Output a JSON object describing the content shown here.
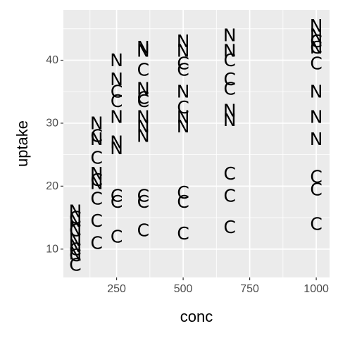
{
  "chart_data": {
    "type": "scatter",
    "title": "",
    "xlabel": "conc",
    "ylabel": "uptake",
    "xlim": [
      50,
      1050
    ],
    "ylim": [
      5.5,
      48
    ],
    "x_ticks": [
      250,
      500,
      750,
      1000
    ],
    "x_tick_labels": [
      "250",
      "500",
      "750",
      "1000"
    ],
    "y_ticks": [
      10,
      20,
      30,
      40
    ],
    "y_tick_labels": [
      "10",
      "20",
      "30",
      "40"
    ],
    "grid": true,
    "legend": "none",
    "panel_background": "#ebebeb",
    "gridline_color": "#ffffff",
    "label_series": [
      {
        "name": "N",
        "points": [
          [
            95,
            16.0
          ],
          [
            95,
            14.5
          ],
          [
            95,
            13.2
          ],
          [
            95,
            11.5
          ],
          [
            95,
            10.5
          ],
          [
            95,
            9.3
          ],
          [
            175,
            30.0
          ],
          [
            175,
            27.5
          ],
          [
            175,
            22.0
          ],
          [
            175,
            20.5
          ],
          [
            250,
            40.0
          ],
          [
            250,
            37.0
          ],
          [
            250,
            31.0
          ],
          [
            250,
            27.0
          ],
          [
            250,
            26.0
          ],
          [
            350,
            42.0
          ],
          [
            350,
            41.5
          ],
          [
            350,
            35.5
          ],
          [
            350,
            31.0
          ],
          [
            350,
            29.5
          ],
          [
            350,
            28.0
          ],
          [
            500,
            43.0
          ],
          [
            500,
            41.5
          ],
          [
            500,
            35.0
          ],
          [
            500,
            31.0
          ],
          [
            500,
            29.5
          ],
          [
            675,
            44.0
          ],
          [
            675,
            41.5
          ],
          [
            675,
            32.0
          ],
          [
            675,
            30.5
          ],
          [
            1000,
            45.5
          ],
          [
            1000,
            44.0
          ],
          [
            1000,
            42.0
          ],
          [
            1000,
            35.0
          ],
          [
            1000,
            31.0
          ],
          [
            1000,
            27.5
          ]
        ]
      },
      {
        "name": "C",
        "points": [
          [
            95,
            15.0
          ],
          [
            95,
            13.0
          ],
          [
            95,
            10.0
          ],
          [
            95,
            9.0
          ],
          [
            95,
            7.5
          ],
          [
            175,
            28.0
          ],
          [
            175,
            24.5
          ],
          [
            175,
            21.0
          ],
          [
            175,
            18.0
          ],
          [
            175,
            14.5
          ],
          [
            175,
            11.0
          ],
          [
            250,
            35.0
          ],
          [
            250,
            33.5
          ],
          [
            250,
            18.5
          ],
          [
            250,
            17.5
          ],
          [
            250,
            12.0
          ],
          [
            350,
            38.5
          ],
          [
            350,
            34.0
          ],
          [
            350,
            33.5
          ],
          [
            350,
            18.5
          ],
          [
            350,
            17.5
          ],
          [
            350,
            13.0
          ],
          [
            500,
            39.5
          ],
          [
            500,
            38.5
          ],
          [
            500,
            32.5
          ],
          [
            500,
            19.0
          ],
          [
            500,
            17.5
          ],
          [
            500,
            12.5
          ],
          [
            675,
            40.0
          ],
          [
            675,
            37.0
          ],
          [
            675,
            35.5
          ],
          [
            675,
            22.0
          ],
          [
            675,
            18.5
          ],
          [
            675,
            13.5
          ],
          [
            1000,
            43.0
          ],
          [
            1000,
            42.0
          ],
          [
            1000,
            39.5
          ],
          [
            1000,
            21.5
          ],
          [
            1000,
            19.5
          ],
          [
            1000,
            14.0
          ]
        ]
      }
    ]
  }
}
